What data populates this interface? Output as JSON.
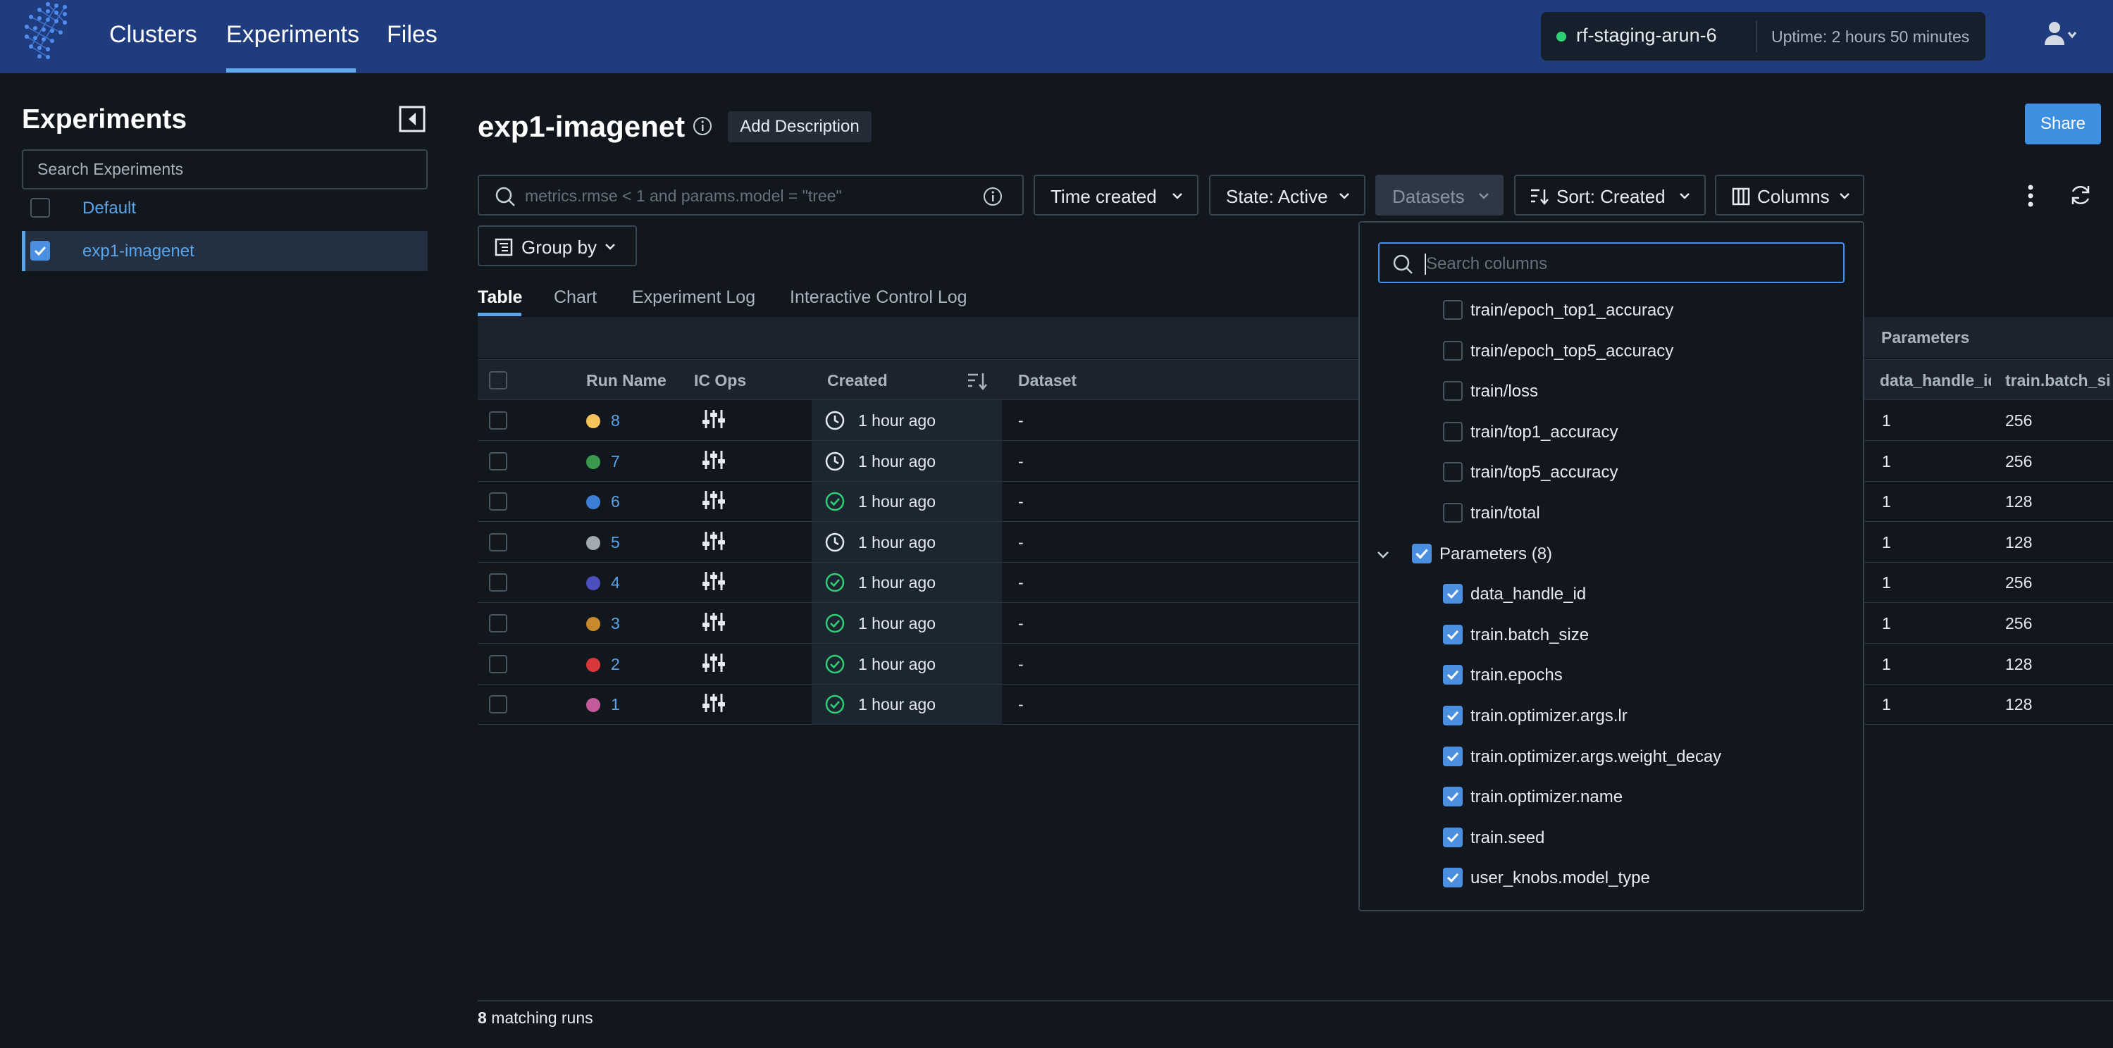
{
  "nav": {
    "items": [
      "Clusters",
      "Experiments",
      "Files"
    ],
    "active": "Experiments"
  },
  "cluster": {
    "name": "rf-staging-arun-6",
    "uptime": "Uptime: 2 hours 50 minutes",
    "status_color": "#2fcf75"
  },
  "sidebar": {
    "title": "Experiments",
    "search_placeholder": "Search Experiments",
    "items": [
      {
        "label": "Default",
        "checked": false
      },
      {
        "label": "exp1-imagenet",
        "checked": true
      }
    ]
  },
  "header": {
    "title": "exp1-imagenet",
    "add_description": "Add Description",
    "share": "Share"
  },
  "filters": {
    "search_placeholder": "metrics.rmse < 1 and params.model = \"tree\"",
    "time_created": "Time created",
    "state": "State: Active",
    "datasets": "Datasets",
    "sort": "Sort: Created",
    "columns": "Columns",
    "group_by": "Group by"
  },
  "tabs": [
    "Table",
    "Chart",
    "Experiment Log",
    "Interactive Control Log"
  ],
  "active_tab": "Table",
  "table": {
    "group_header": "Parameters",
    "columns": {
      "run_name": "Run Name",
      "ic_ops": "IC Ops",
      "created": "Created",
      "dataset": "Dataset",
      "param1": "data_handle_id",
      "param2": "train.batch_size"
    },
    "rows": [
      {
        "run": "8",
        "color": "#f2c45a",
        "status": "clock",
        "created": "1 hour ago",
        "dataset": "-",
        "data_handle_id": "1",
        "batch_size": "256"
      },
      {
        "run": "7",
        "color": "#3c9a4e",
        "status": "clock",
        "created": "1 hour ago",
        "dataset": "-",
        "data_handle_id": "1",
        "batch_size": "256"
      },
      {
        "run": "6",
        "color": "#3d7fd6",
        "status": "check",
        "created": "1 hour ago",
        "dataset": "-",
        "data_handle_id": "1",
        "batch_size": "128"
      },
      {
        "run": "5",
        "color": "#a4aab2",
        "status": "clock",
        "created": "1 hour ago",
        "dataset": "-",
        "data_handle_id": "1",
        "batch_size": "128"
      },
      {
        "run": "4",
        "color": "#4e4fbf",
        "status": "check",
        "created": "1 hour ago",
        "dataset": "-",
        "data_handle_id": "1",
        "batch_size": "256"
      },
      {
        "run": "3",
        "color": "#c88a2c",
        "status": "check",
        "created": "1 hour ago",
        "dataset": "-",
        "data_handle_id": "1",
        "batch_size": "256"
      },
      {
        "run": "2",
        "color": "#d9383c",
        "status": "check",
        "created": "1 hour ago",
        "dataset": "-",
        "data_handle_id": "1",
        "batch_size": "128"
      },
      {
        "run": "1",
        "color": "#c45a9a",
        "status": "check",
        "created": "1 hour ago",
        "dataset": "-",
        "data_handle_id": "1",
        "batch_size": "128"
      }
    ],
    "footer_count": "8",
    "footer_text": "matching runs"
  },
  "columns_popover": {
    "search_placeholder": "Search columns",
    "metric_items": [
      {
        "label": "train/epoch_top1_accuracy",
        "checked": false
      },
      {
        "label": "train/epoch_top5_accuracy",
        "checked": false
      },
      {
        "label": "train/loss",
        "checked": false
      },
      {
        "label": "train/top1_accuracy",
        "checked": false
      },
      {
        "label": "train/top5_accuracy",
        "checked": false
      },
      {
        "label": "train/total",
        "checked": false
      }
    ],
    "group_label": "Parameters (8)",
    "param_items": [
      {
        "label": "data_handle_id",
        "checked": true
      },
      {
        "label": "train.batch_size",
        "checked": true
      },
      {
        "label": "train.epochs",
        "checked": true
      },
      {
        "label": "train.optimizer.args.lr",
        "checked": true
      },
      {
        "label": "train.optimizer.args.weight_decay",
        "checked": true
      },
      {
        "label": "train.optimizer.name",
        "checked": true
      },
      {
        "label": "train.seed",
        "checked": true
      },
      {
        "label": "user_knobs.model_type",
        "checked": true
      }
    ]
  },
  "colors": {
    "topbar": "#1f3c7e",
    "accent": "#5aa5ea",
    "success": "#2fcf75"
  }
}
